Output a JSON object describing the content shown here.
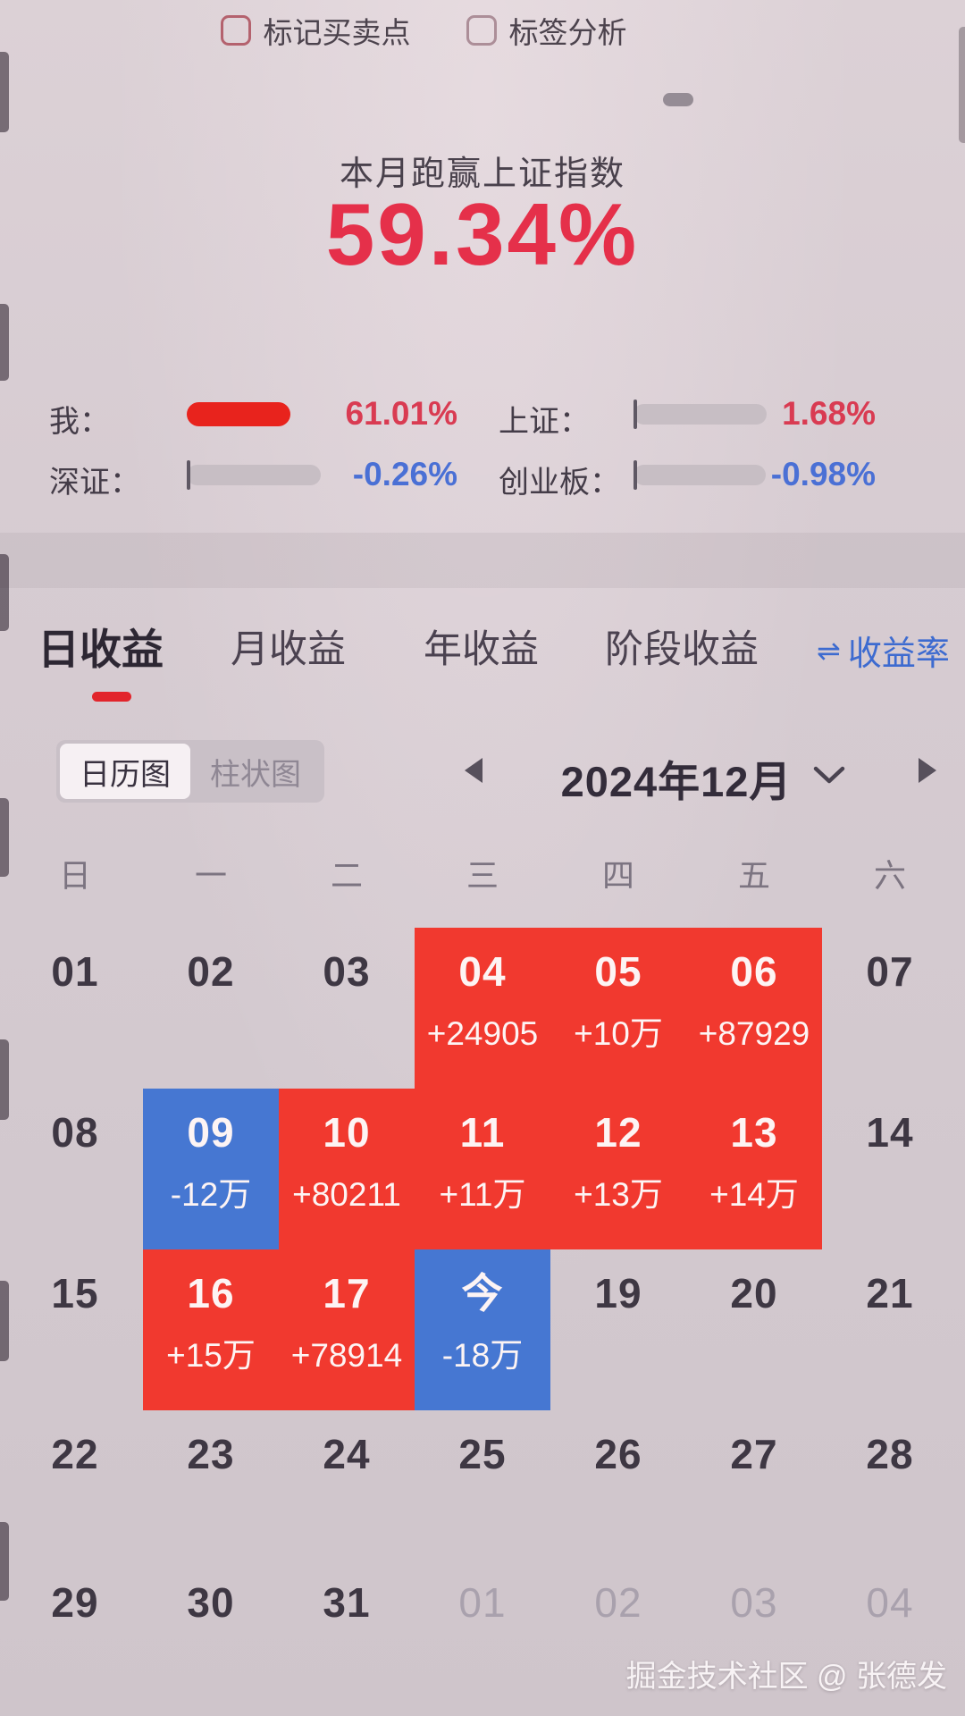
{
  "header": {
    "checkboxes": [
      {
        "label": "标记买卖点",
        "checked": false
      },
      {
        "label": "标签分析",
        "checked": false
      }
    ],
    "subtitle": "本月跑赢上证指数",
    "headline_percent": "59.34%"
  },
  "stats": {
    "rows": [
      {
        "label": "我：",
        "value": "61.01%",
        "tone": "red"
      },
      {
        "label": "上证：",
        "value": "1.68%",
        "tone": "red"
      },
      {
        "label": "深证：",
        "value": "-0.26%",
        "tone": "blue"
      },
      {
        "label": "创业板：",
        "value": "-0.98%",
        "tone": "blue"
      }
    ]
  },
  "tabs": {
    "items": [
      {
        "label": "日收益",
        "active": true
      },
      {
        "label": "月收益",
        "active": false
      },
      {
        "label": "年收益",
        "active": false
      },
      {
        "label": "阶段收益",
        "active": false
      }
    ],
    "rate_toggle": {
      "icon": "⇌",
      "label": "收益率"
    }
  },
  "calendar": {
    "view_toggle": [
      {
        "label": "日历图",
        "active": true
      },
      {
        "label": "柱状图",
        "active": false
      }
    ],
    "month_label": "2024年12月",
    "weekdays": [
      "日",
      "一",
      "二",
      "三",
      "四",
      "五",
      "六"
    ],
    "cells": [
      {
        "date": "01",
        "value": "",
        "state": ""
      },
      {
        "date": "02",
        "value": "",
        "state": ""
      },
      {
        "date": "03",
        "value": "",
        "state": ""
      },
      {
        "date": "04",
        "value": "+24905",
        "state": "red"
      },
      {
        "date": "05",
        "value": "+10万",
        "state": "red"
      },
      {
        "date": "06",
        "value": "+87929",
        "state": "red"
      },
      {
        "date": "07",
        "value": "",
        "state": ""
      },
      {
        "date": "08",
        "value": "",
        "state": ""
      },
      {
        "date": "09",
        "value": "-12万",
        "state": "blue"
      },
      {
        "date": "10",
        "value": "+80211",
        "state": "red"
      },
      {
        "date": "11",
        "value": "+11万",
        "state": "red"
      },
      {
        "date": "12",
        "value": "+13万",
        "state": "red"
      },
      {
        "date": "13",
        "value": "+14万",
        "state": "red"
      },
      {
        "date": "14",
        "value": "",
        "state": ""
      },
      {
        "date": "15",
        "value": "",
        "state": ""
      },
      {
        "date": "16",
        "value": "+15万",
        "state": "red"
      },
      {
        "date": "17",
        "value": "+78914",
        "state": "red"
      },
      {
        "date": "今",
        "value": "-18万",
        "state": "blue"
      },
      {
        "date": "19",
        "value": "",
        "state": ""
      },
      {
        "date": "20",
        "value": "",
        "state": ""
      },
      {
        "date": "21",
        "value": "",
        "state": ""
      },
      {
        "date": "22",
        "value": "",
        "state": ""
      },
      {
        "date": "23",
        "value": "",
        "state": ""
      },
      {
        "date": "24",
        "value": "",
        "state": ""
      },
      {
        "date": "25",
        "value": "",
        "state": ""
      },
      {
        "date": "26",
        "value": "",
        "state": ""
      },
      {
        "date": "27",
        "value": "",
        "state": ""
      },
      {
        "date": "28",
        "value": "",
        "state": ""
      },
      {
        "date": "29",
        "value": "",
        "state": ""
      },
      {
        "date": "30",
        "value": "",
        "state": ""
      },
      {
        "date": "31",
        "value": "",
        "state": ""
      },
      {
        "date": "01",
        "value": "",
        "state": "next"
      },
      {
        "date": "02",
        "value": "",
        "state": "next"
      },
      {
        "date": "03",
        "value": "",
        "state": "next"
      },
      {
        "date": "04",
        "value": "",
        "state": "next"
      }
    ]
  },
  "watermark": "掘金技术社区 @ 张德发",
  "colors": {
    "red": "#f1392f",
    "blue": "#4677d2",
    "accent_red": "#e5304a",
    "accent_blue": "#4a70d5"
  }
}
